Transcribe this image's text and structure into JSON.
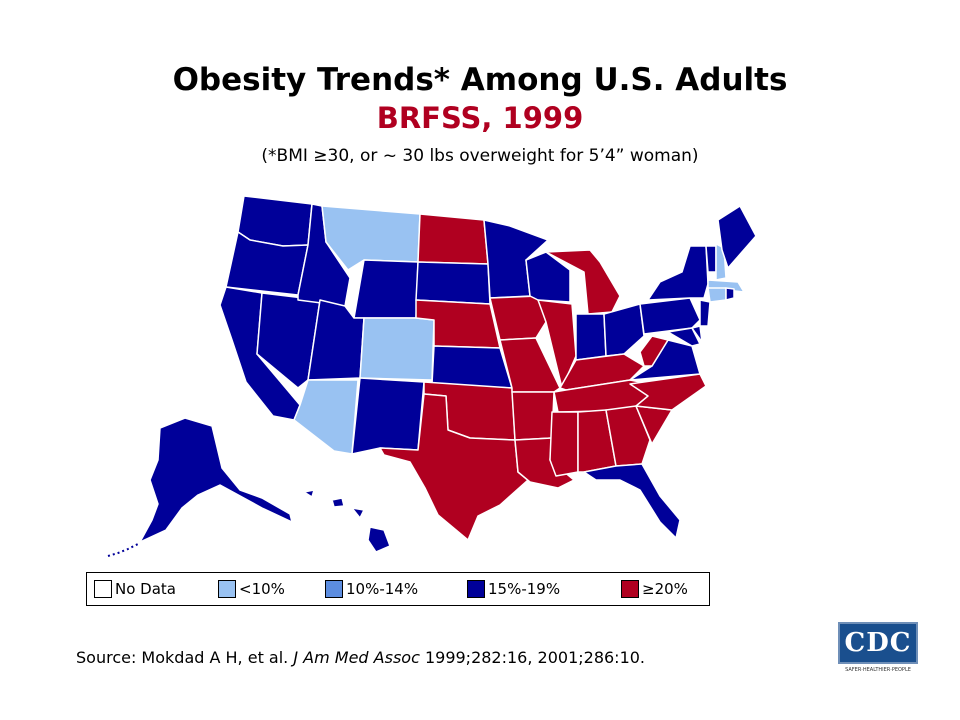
{
  "header": {
    "title": "Obesity Trends* Among U.S. Adults",
    "subtitle": "BRFSS, 1999",
    "note": "(*BMI ≥30, or ~ 30 lbs overweight for 5’4” woman)"
  },
  "colors": {
    "no_data": "#ffffff",
    "lt10": "#99c2f2",
    "p10_14": "#5c8de0",
    "p15_19": "#000099",
    "ge20": "#b00020",
    "title_red": "#b00020",
    "border": "#ffffff"
  },
  "legend": [
    {
      "label": "No Data",
      "color_key": "no_data"
    },
    {
      "label": "<10%",
      "color_key": "lt10"
    },
    {
      "label": "10%-14%",
      "color_key": "p10_14"
    },
    {
      "label": "15%-19%",
      "color_key": "p15_19"
    },
    {
      "label": "≥20%",
      "color_key": "ge20"
    }
  ],
  "state_categories": {
    "WA": "p15_19",
    "OR": "p15_19",
    "CA": "p15_19",
    "ID": "p15_19",
    "NV": "p15_19",
    "MT": "lt10",
    "WY": "p15_19",
    "UT": "p15_19",
    "CO": "lt10",
    "AZ": "lt10",
    "NM": "p15_19",
    "ND": "ge20",
    "SD": "p15_19",
    "NE": "ge20",
    "KS": "p15_19",
    "OK": "ge20",
    "TX": "ge20",
    "MN": "p15_19",
    "IA": "ge20",
    "MO": "ge20",
    "AR": "ge20",
    "LA": "ge20",
    "WI": "p15_19",
    "IL": "ge20",
    "MI": "ge20",
    "IN": "p15_19",
    "OH": "p15_19",
    "KY": "ge20",
    "TN": "ge20",
    "MS": "ge20",
    "AL": "ge20",
    "GA": "ge20",
    "FL": "p15_19",
    "SC": "ge20",
    "NC": "ge20",
    "VA": "p15_19",
    "WV": "ge20",
    "PA": "p15_19",
    "NY": "p15_19",
    "VT": "p15_19",
    "NH": "lt10",
    "ME": "p15_19",
    "MA": "lt10",
    "RI": "p15_19",
    "CT": "lt10",
    "NJ": "p15_19",
    "DE": "p15_19",
    "MD": "p15_19",
    "AK": "p15_19",
    "HI": "p15_19"
  },
  "source": {
    "prefix": "Source: Mokdad A H, et al. ",
    "journal": "J Am Med Assoc",
    "suffix": " 1999;282:16, 2001;286:10."
  },
  "logo": {
    "text": "CDC",
    "tagline": "SAFER·HEALTHIER·PEOPLE"
  }
}
